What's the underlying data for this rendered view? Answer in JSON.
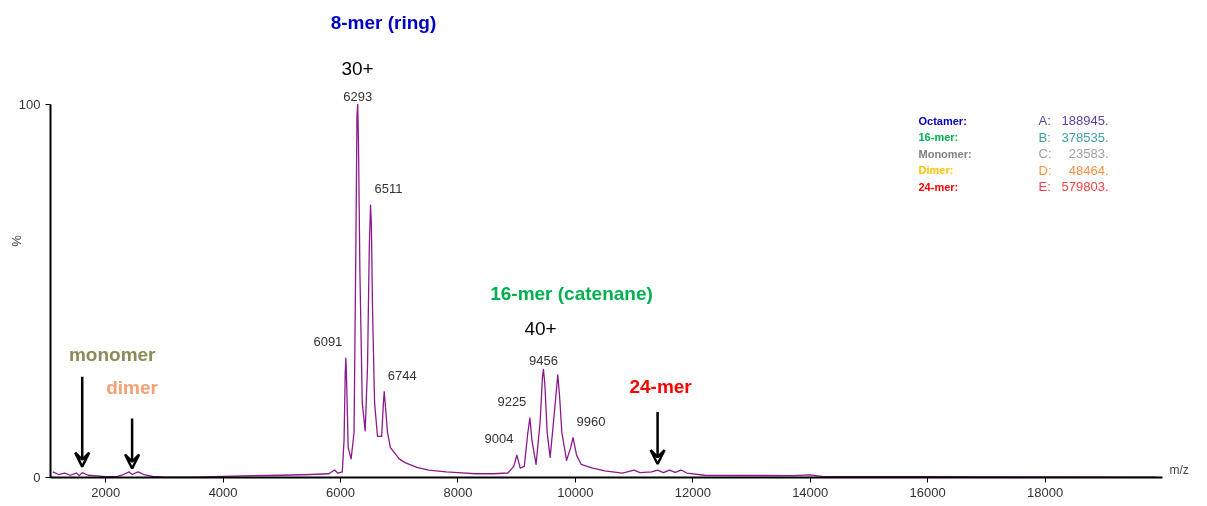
{
  "chart_data": {
    "type": "line",
    "xlabel": "m/z",
    "ylabel": "%",
    "xlim": [
      1060,
      20000
    ],
    "ylim": [
      0,
      100
    ],
    "xticks": [
      2000,
      4000,
      6000,
      8000,
      10000,
      12000,
      14000,
      16000,
      18000
    ],
    "yticks": [
      0,
      100
    ],
    "grid": false,
    "marker": "none",
    "line_style": "solid",
    "series": [
      {
        "color": "#8b1a8b",
        "x": [
          1100,
          1200,
          1300,
          1400,
          1500,
          1550,
          1600,
          1700,
          1800,
          2000,
          2200,
          2300,
          2400,
          2450,
          2550,
          2650,
          2800,
          3000,
          3500,
          4000,
          4500,
          5000,
          5500,
          5800,
          5900,
          5950,
          6030,
          6060,
          6080,
          6091,
          6105,
          6130,
          6180,
          6230,
          6260,
          6280,
          6293,
          6305,
          6330,
          6370,
          6420,
          6460,
          6490,
          6511,
          6525,
          6545,
          6580,
          6630,
          6700,
          6730,
          6744,
          6760,
          6800,
          6850,
          7000,
          7100,
          7300,
          7500,
          7800,
          8000,
          8300,
          8600,
          8850,
          8950,
          9004,
          9060,
          9130,
          9190,
          9225,
          9260,
          9330,
          9400,
          9440,
          9456,
          9480,
          9520,
          9570,
          9640,
          9700,
          9730,
          9770,
          9850,
          9920,
          9960,
          10020,
          10100,
          10200,
          10300,
          10500,
          10800,
          11000,
          11100,
          11300,
          11400,
          11500,
          11600,
          11700,
          11800,
          11900,
          12200,
          13700,
          14000,
          14200,
          16000,
          19900
        ],
        "values": [
          1.5,
          0.8,
          1.2,
          0.6,
          1.2,
          0.5,
          1.3,
          0.6,
          0.5,
          0.2,
          0.3,
          0.8,
          1.5,
          0.8,
          1.5,
          0.8,
          0.3,
          0.1,
          0.1,
          0.3,
          0.5,
          0.6,
          0.8,
          1,
          2,
          1.2,
          1.5,
          10,
          28,
          32,
          25,
          8,
          5,
          12,
          60,
          97,
          100,
          90,
          55,
          20,
          12.5,
          30,
          62,
          73,
          68,
          45,
          20,
          11,
          11,
          20,
          23,
          20,
          12,
          8,
          5,
          4,
          2.7,
          2,
          1.5,
          1.3,
          1,
          1,
          1.2,
          3,
          6,
          2.5,
          3,
          12,
          16,
          10,
          3.5,
          15,
          27,
          29,
          25,
          12,
          5.4,
          17,
          27.5,
          22,
          12,
          4.6,
          8,
          10.7,
          6,
          3.5,
          3,
          2.5,
          1.8,
          1.2,
          2,
          1.3,
          1.5,
          2,
          1.3,
          2,
          1.4,
          2,
          1.2,
          0.6,
          0.5,
          0.7,
          0.3,
          0.2,
          0.1
        ]
      }
    ],
    "annotations": [
      {
        "text": "6091",
        "x": 6091,
        "y": 32
      },
      {
        "text": "6293",
        "x": 6293,
        "y": 100
      },
      {
        "text": "6511",
        "x": 6511,
        "y": 73
      },
      {
        "text": "6744",
        "x": 6744,
        "y": 23
      },
      {
        "text": "9004",
        "x": 9004,
        "y": 6
      },
      {
        "text": "9225",
        "x": 9225,
        "y": 16
      },
      {
        "text": "9456",
        "x": 9456,
        "y": 29
      },
      {
        "text": "9960",
        "x": 9960,
        "y": 10.7
      },
      "30+",
      "8-mer (ring)",
      "40+",
      "16-mer (catenane)",
      {
        "text": "monomer",
        "x": 1600,
        "y": 1.3
      },
      {
        "text": "dimer",
        "x": 2450,
        "y": 0.8
      },
      {
        "text": "24-mer",
        "x": 11400,
        "y": 2
      },
      "Octamer:",
      "A:",
      "188945.",
      "16-mer:",
      "B:",
      "378535.",
      "Monomer:",
      "C:",
      "23583.",
      "Dimer:",
      "D:",
      "48464.",
      "24-mer:",
      "E:",
      "579803."
    ]
  }
}
